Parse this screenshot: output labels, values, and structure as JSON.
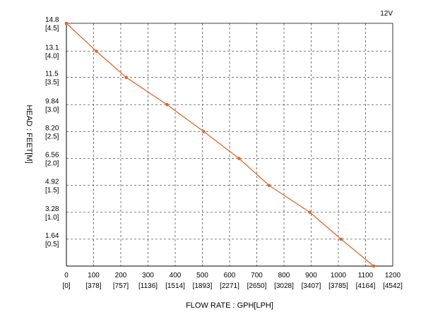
{
  "chart_data": {
    "type": "line",
    "title": "",
    "series_label": "12V",
    "xlabel": "FLOW RATE : GPH[LPH]",
    "ylabel": "HEAD : FEET[M]",
    "xlim": [
      0,
      1200
    ],
    "ylim": [
      0,
      14.8
    ],
    "grid": true,
    "line_color": "#e0662a",
    "x_ticks": [
      {
        "value": 0,
        "label": "0",
        "sub": "[0]"
      },
      {
        "value": 100,
        "label": "100",
        "sub": "[378]"
      },
      {
        "value": 200,
        "label": "200",
        "sub": "[757]"
      },
      {
        "value": 300,
        "label": "300",
        "sub": "[1136]"
      },
      {
        "value": 400,
        "label": "400",
        "sub": "[1514]"
      },
      {
        "value": 500,
        "label": "500",
        "sub": "[1893]"
      },
      {
        "value": 600,
        "label": "600",
        "sub": "[2271]"
      },
      {
        "value": 700,
        "label": "700",
        "sub": "[2650]"
      },
      {
        "value": 800,
        "label": "800",
        "sub": "[3028]"
      },
      {
        "value": 900,
        "label": "900",
        "sub": "[3407]"
      },
      {
        "value": 1000,
        "label": "1000",
        "sub": "[3785]"
      },
      {
        "value": 1100,
        "label": "1100",
        "sub": "[4164]"
      },
      {
        "value": 1200,
        "label": "1200",
        "sub": "[4542]"
      }
    ],
    "y_ticks": [
      {
        "value": 14.8,
        "label": "14.8",
        "sub": "[4.5]"
      },
      {
        "value": 13.1,
        "label": "13.1",
        "sub": "[4.0]"
      },
      {
        "value": 11.5,
        "label": "11.5",
        "sub": "[3.5]"
      },
      {
        "value": 9.84,
        "label": "9.84",
        "sub": "[3.0]"
      },
      {
        "value": 8.2,
        "label": "8.20",
        "sub": "[2.5]"
      },
      {
        "value": 6.56,
        "label": "6.56",
        "sub": "[2.0]"
      },
      {
        "value": 4.92,
        "label": "4.92",
        "sub": "[1.5]"
      },
      {
        "value": 3.28,
        "label": "3.28",
        "sub": "[1.0]"
      },
      {
        "value": 1.64,
        "label": "1.64",
        "sub": "[0.5]"
      }
    ],
    "series": [
      {
        "x": [
          0,
          110,
          220,
          370,
          505,
          635,
          745,
          895,
          1010,
          1130
        ],
        "y": [
          14.8,
          13.1,
          11.5,
          9.84,
          8.2,
          6.56,
          4.92,
          3.28,
          1.64,
          0
        ]
      }
    ]
  }
}
